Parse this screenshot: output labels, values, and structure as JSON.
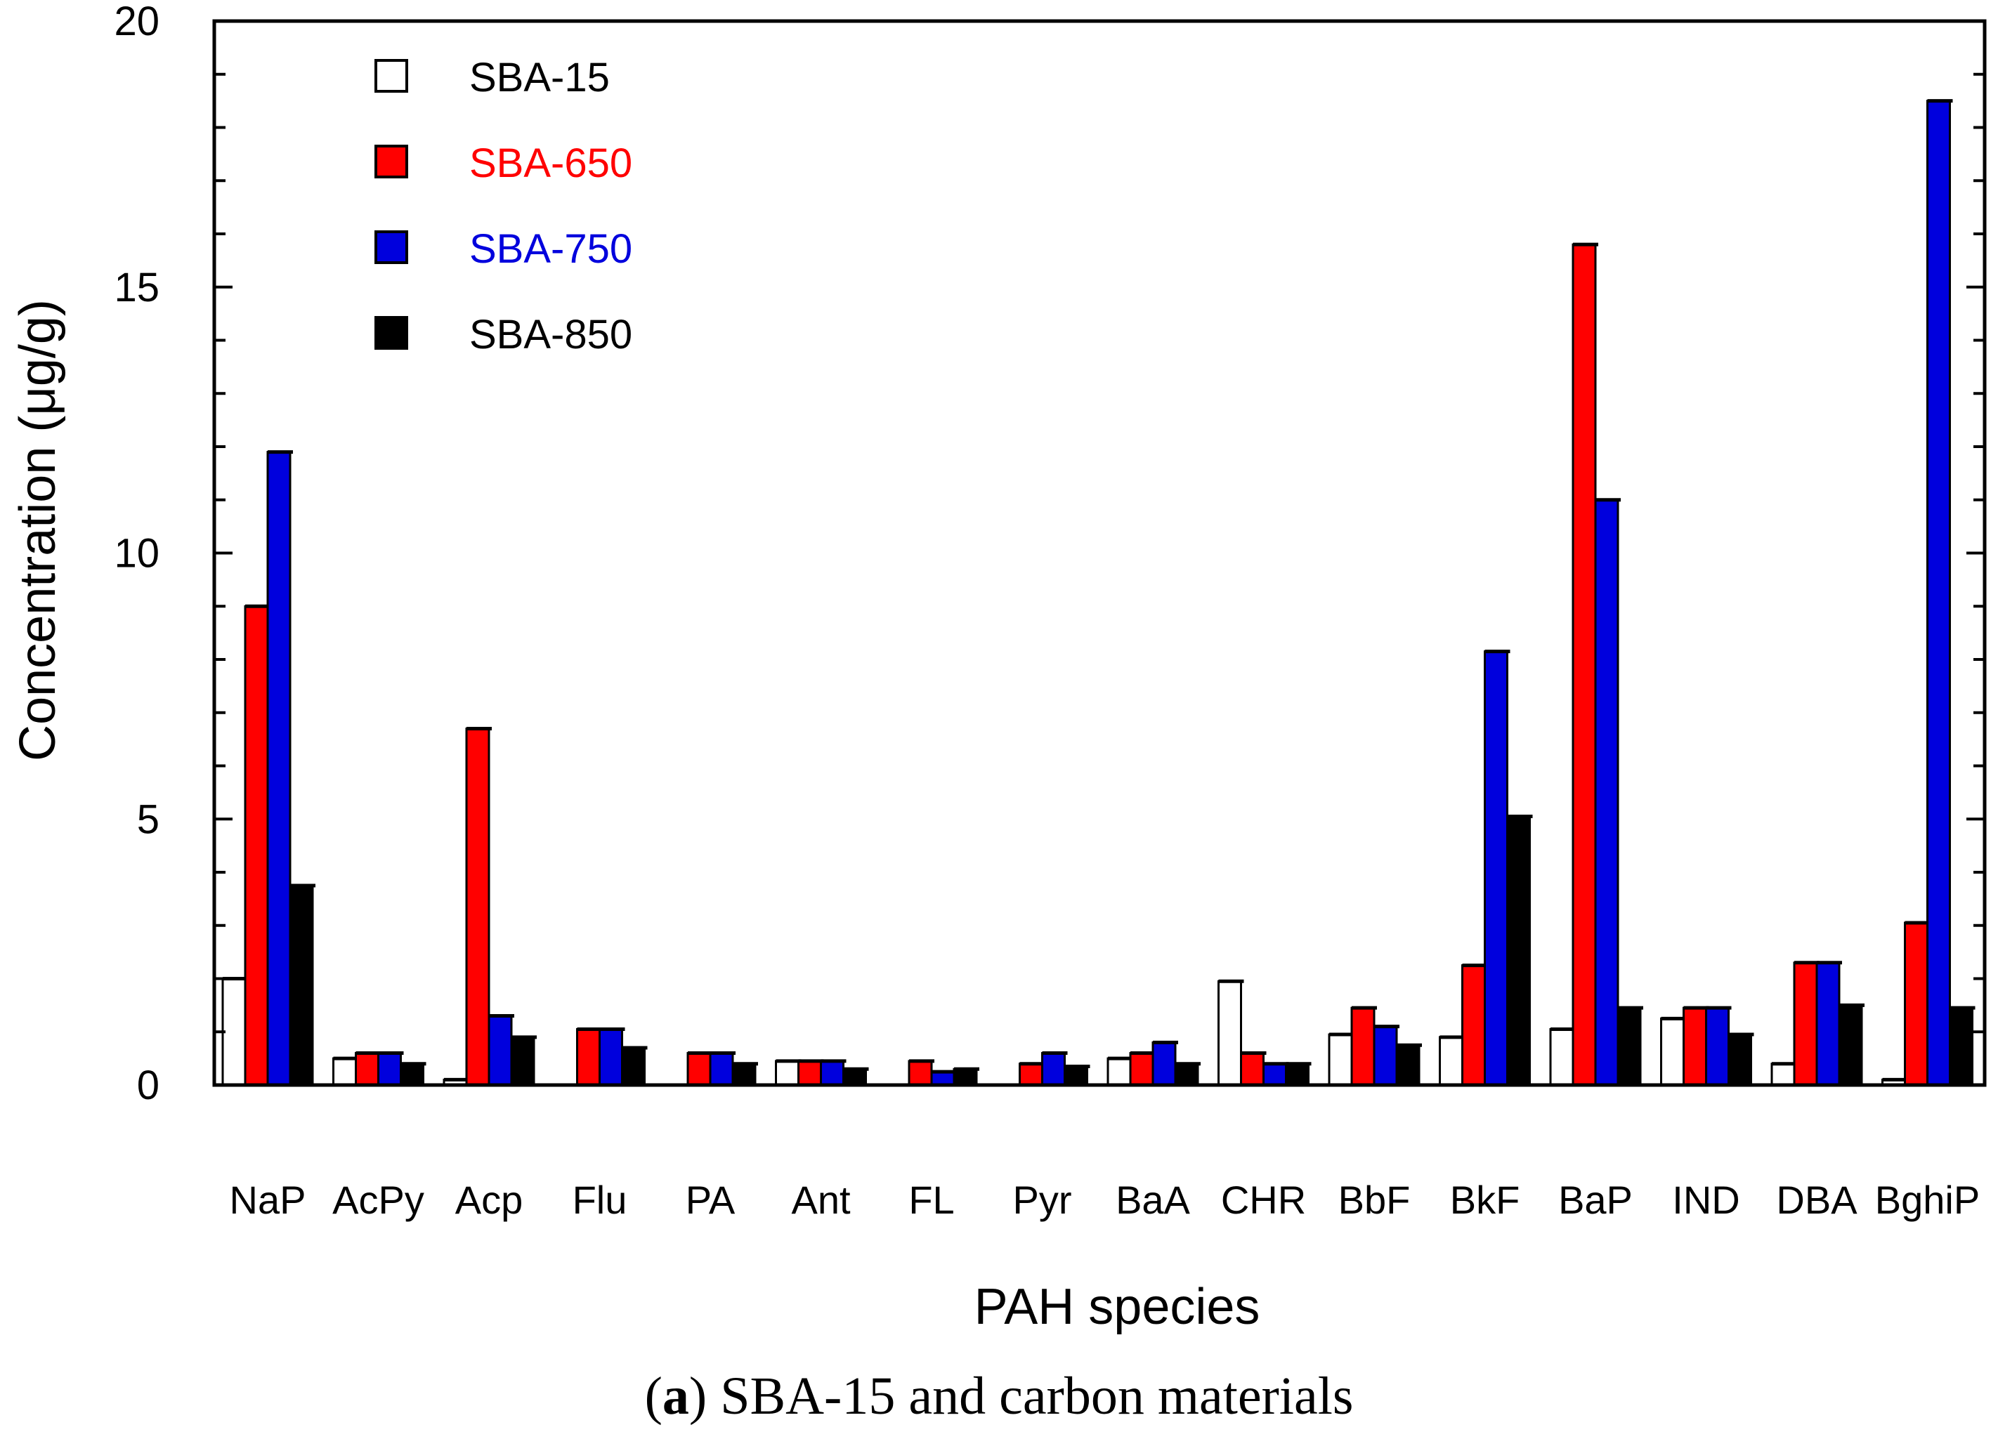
{
  "chart_data": {
    "type": "bar",
    "xlabel": "PAH species",
    "ylabel": "Concentration (μg/g)",
    "ylim": [
      0,
      20
    ],
    "yticks": [
      0,
      5,
      10,
      15,
      20
    ],
    "categories": [
      "NaP",
      "AcPy",
      "Acp",
      "Flu",
      "PA",
      "Ant",
      "FL",
      "Pyr",
      "BaA",
      "CHR",
      "BbF",
      "BkF",
      "BaP",
      "IND",
      "DBA",
      "BghiP"
    ],
    "series": [
      {
        "name": "SBA-15",
        "color": "#ffffff",
        "text_color": "#000000",
        "values": [
          2.0,
          0.5,
          0.1,
          0.0,
          0.0,
          0.45,
          0.0,
          0.0,
          0.5,
          1.95,
          0.95,
          0.9,
          1.05,
          1.25,
          0.4,
          0.1
        ]
      },
      {
        "name": "SBA-650",
        "color": "#ff0000",
        "text_color": "#ff0000",
        "values": [
          9.0,
          0.6,
          6.7,
          1.05,
          0.6,
          0.45,
          0.45,
          0.4,
          0.6,
          0.6,
          1.45,
          2.25,
          15.8,
          1.45,
          2.3,
          3.05
        ]
      },
      {
        "name": "SBA-750",
        "color": "#0000dd",
        "text_color": "#0000dd",
        "values": [
          11.9,
          0.6,
          1.3,
          1.05,
          0.6,
          0.45,
          0.25,
          0.6,
          0.8,
          0.4,
          1.1,
          8.15,
          11.0,
          1.45,
          2.3,
          18.5
        ]
      },
      {
        "name": "SBA-850",
        "color": "#000000",
        "text_color": "#000000",
        "values": [
          3.75,
          0.4,
          0.9,
          0.7,
          0.4,
          0.3,
          0.3,
          0.35,
          0.4,
          0.4,
          0.75,
          5.05,
          1.45,
          0.95,
          1.5,
          1.45
        ]
      }
    ]
  },
  "caption": {
    "label": "a",
    "text": "SBA-15 and carbon materials"
  }
}
